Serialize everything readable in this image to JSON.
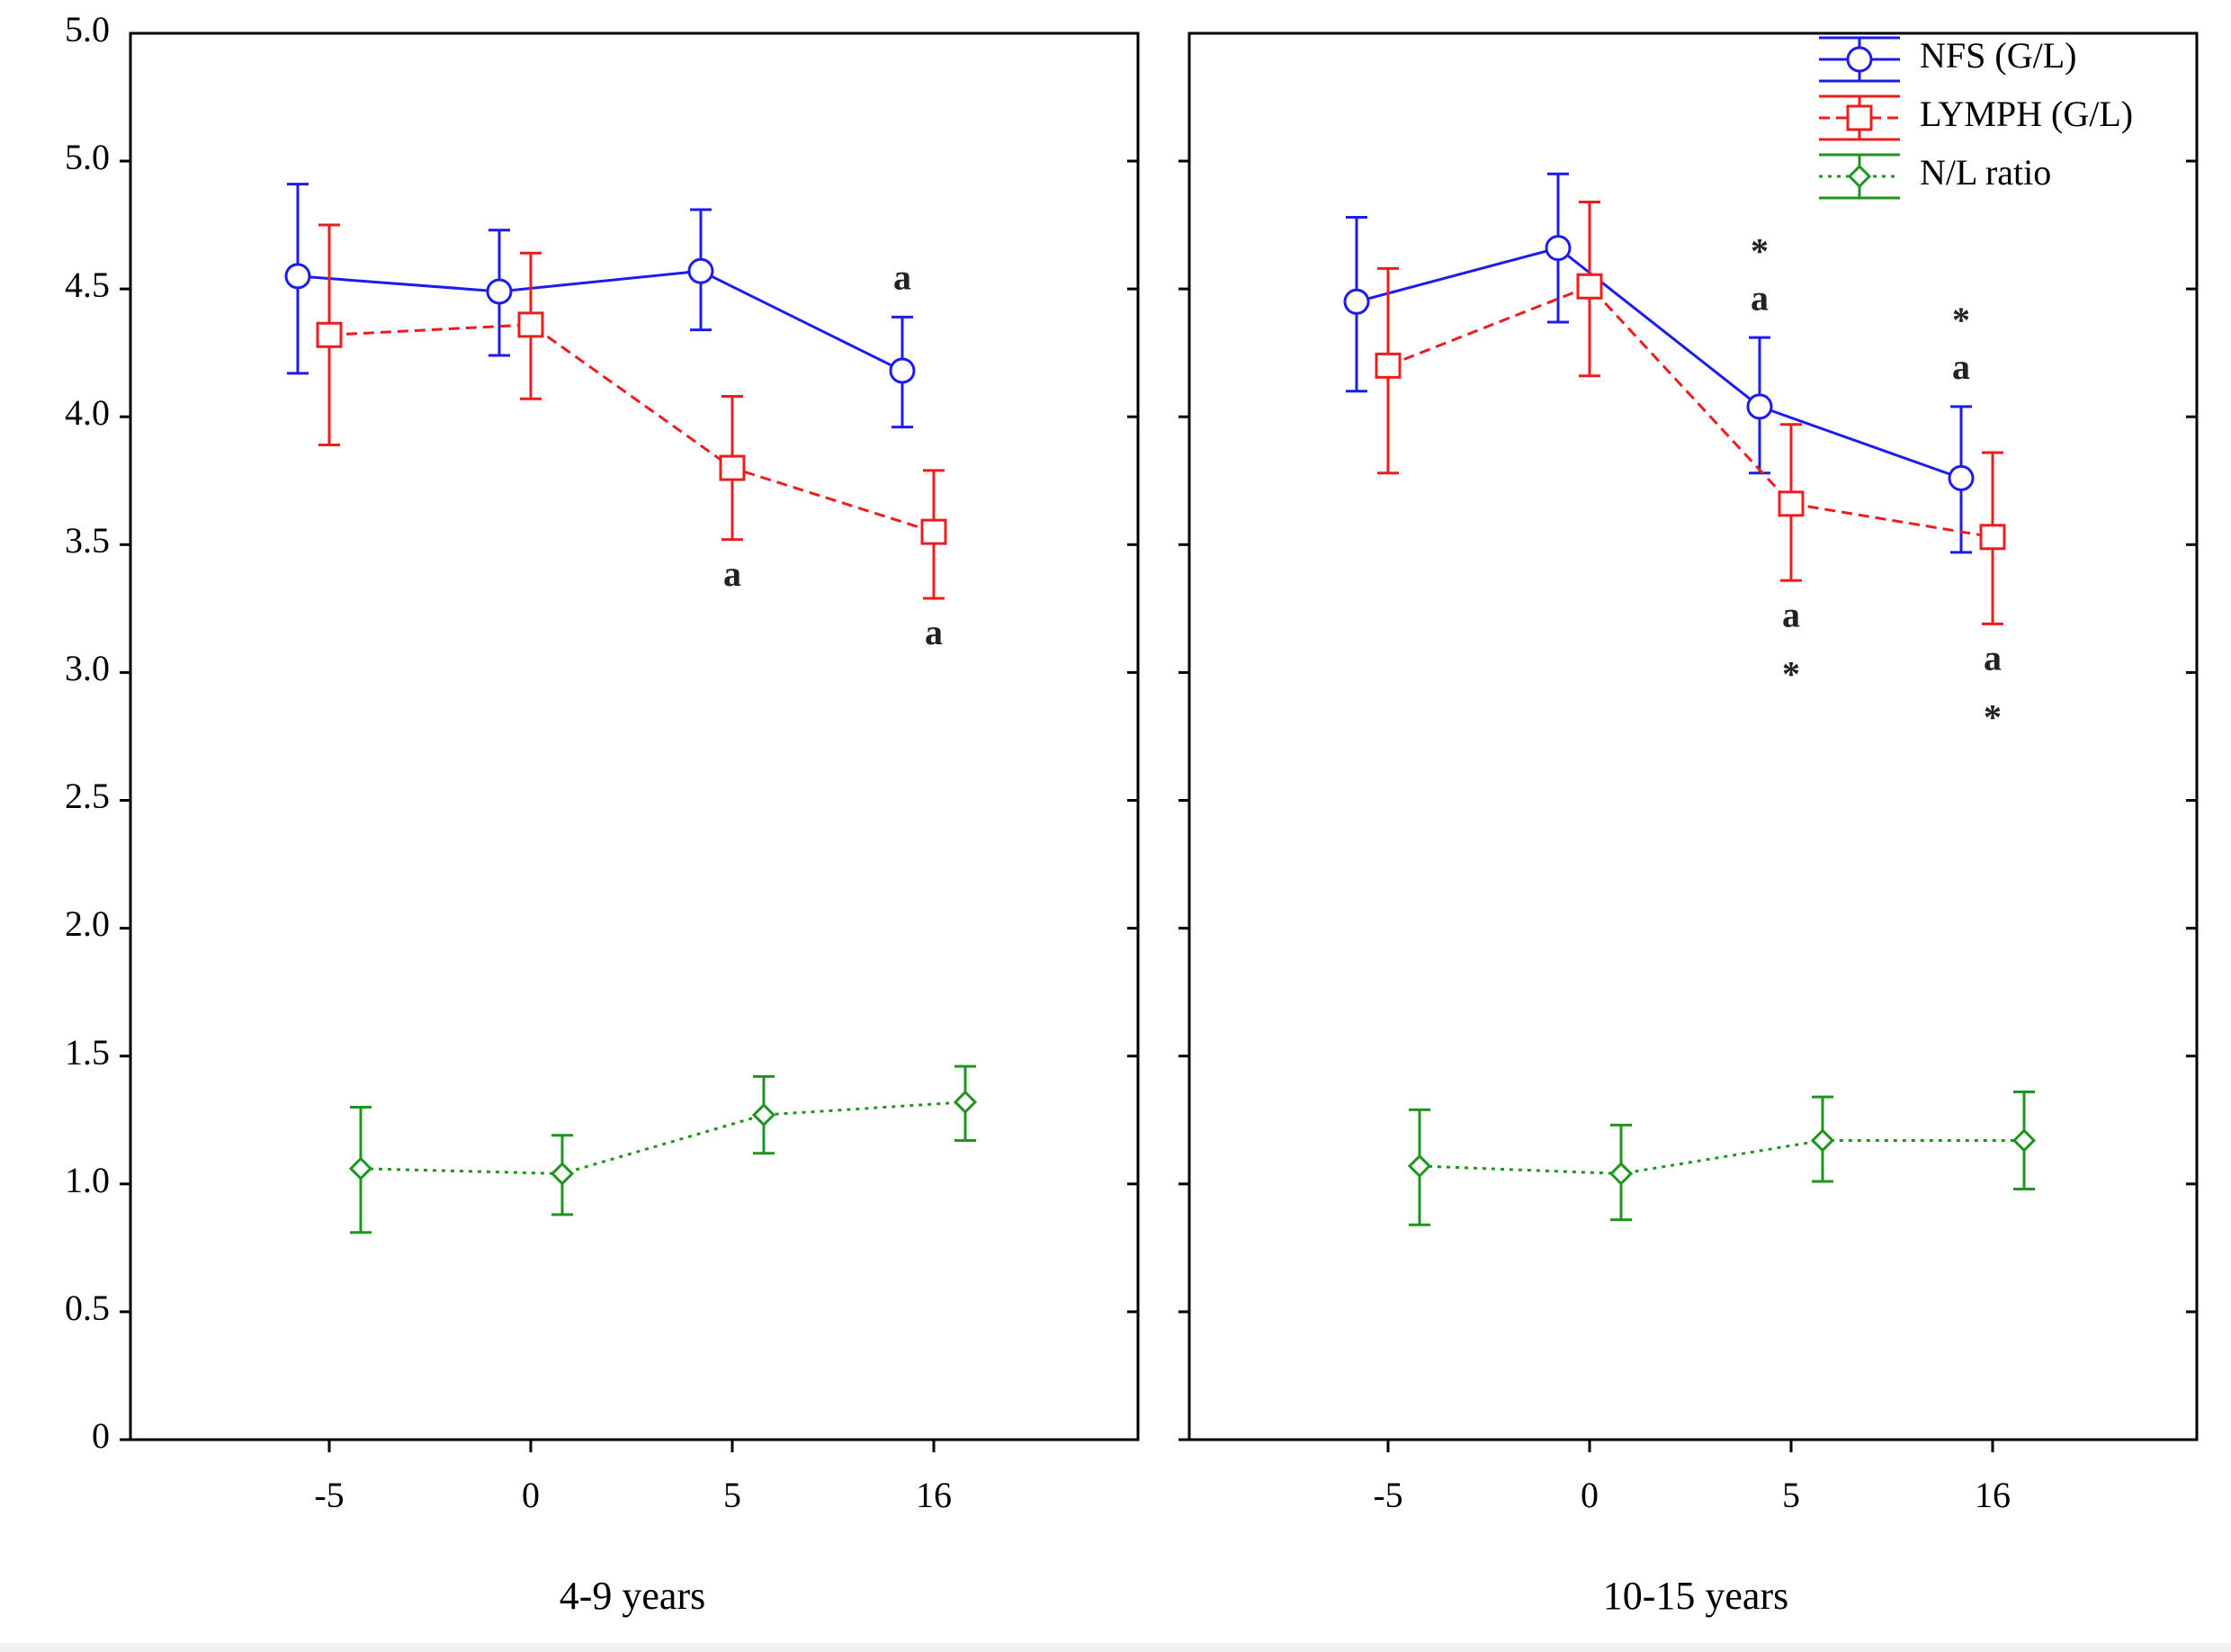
{
  "chart_data": {
    "type": "line",
    "subtype": "line with error bars, two panels",
    "y_ticks": [
      "0",
      "0.5",
      "1.0",
      "1.5",
      "2.0",
      "2.5",
      "3.0",
      "3.5",
      "4.0",
      "4.5",
      "5.0",
      "5.0"
    ],
    "y_range": [
      0,
      5.5
    ],
    "categories": [
      "-5",
      "0",
      "5",
      "16"
    ],
    "legend": {
      "placement": "top-right of right panel",
      "entries": [
        {
          "name": "NFS (G/L)",
          "color": "#1c1cf0",
          "marker": "circle",
          "dash": "solid"
        },
        {
          "name": "LYMPH (G/L)",
          "color": "#ee1c1c",
          "marker": "square",
          "dash": "dashed"
        },
        {
          "name": "N/L ratio",
          "color": "#1e961e",
          "marker": "diamond",
          "dash": "dotted"
        }
      ]
    },
    "panels": [
      {
        "label": "4-9 years",
        "series": [
          {
            "name": "NFS (G/L)",
            "values": [
              4.55,
              4.49,
              4.57,
              4.18
            ],
            "lower": [
              4.17,
              4.24,
              4.34,
              3.96
            ],
            "upper": [
              4.91,
              4.73,
              4.81,
              4.39
            ]
          },
          {
            "name": "LYMPH (G/L)",
            "values": [
              4.32,
              4.36,
              3.8,
              3.55
            ],
            "lower": [
              3.89,
              4.07,
              3.52,
              3.29
            ],
            "upper": [
              4.75,
              4.64,
              4.08,
              3.79
            ]
          },
          {
            "name": "N/L ratio",
            "values": [
              1.06,
              1.04,
              1.27,
              1.32
            ],
            "lower": [
              0.81,
              0.88,
              1.12,
              1.17
            ],
            "upper": [
              1.3,
              1.19,
              1.42,
              1.46
            ]
          }
        ],
        "annotations": [
          {
            "text": "a",
            "series": "NFS (G/L)",
            "category": "16",
            "position": "above"
          },
          {
            "text": "a",
            "series": "LYMPH (G/L)",
            "category": "5",
            "position": "below"
          },
          {
            "text": "a",
            "series": "LYMPH (G/L)",
            "category": "16",
            "position": "below"
          }
        ]
      },
      {
        "label": "10-15 years",
        "series": [
          {
            "name": "NFS (G/L)",
            "values": [
              4.45,
              4.66,
              4.04,
              3.76
            ],
            "lower": [
              4.1,
              4.37,
              3.78,
              3.47
            ],
            "upper": [
              4.78,
              4.95,
              4.31,
              4.04
            ]
          },
          {
            "name": "LYMPH (G/L)",
            "values": [
              4.2,
              4.51,
              3.66,
              3.53
            ],
            "lower": [
              3.78,
              4.16,
              3.36,
              3.19
            ],
            "upper": [
              4.58,
              4.84,
              3.97,
              3.86
            ]
          },
          {
            "name": "N/L ratio",
            "values": [
              1.07,
              1.04,
              1.17,
              1.17
            ],
            "lower": [
              0.84,
              0.86,
              1.01,
              0.98
            ],
            "upper": [
              1.29,
              1.23,
              1.34,
              1.36
            ]
          }
        ],
        "annotations": [
          {
            "text": "*",
            "series": "NFS (G/L)",
            "category": "5",
            "position": "above-upper"
          },
          {
            "text": "a",
            "series": "NFS (G/L)",
            "category": "5",
            "position": "above"
          },
          {
            "text": "*",
            "series": "NFS (G/L)",
            "category": "16",
            "position": "above-upper"
          },
          {
            "text": "a",
            "series": "NFS (G/L)",
            "category": "16",
            "position": "above"
          },
          {
            "text": "a",
            "series": "LYMPH (G/L)",
            "category": "5",
            "position": "below"
          },
          {
            "text": "*",
            "series": "LYMPH (G/L)",
            "category": "5",
            "position": "below-lower"
          },
          {
            "text": "a",
            "series": "LYMPH (G/L)",
            "category": "16",
            "position": "below"
          },
          {
            "text": "*",
            "series": "LYMPH (G/L)",
            "category": "16",
            "position": "below-lower"
          }
        ]
      }
    ]
  }
}
